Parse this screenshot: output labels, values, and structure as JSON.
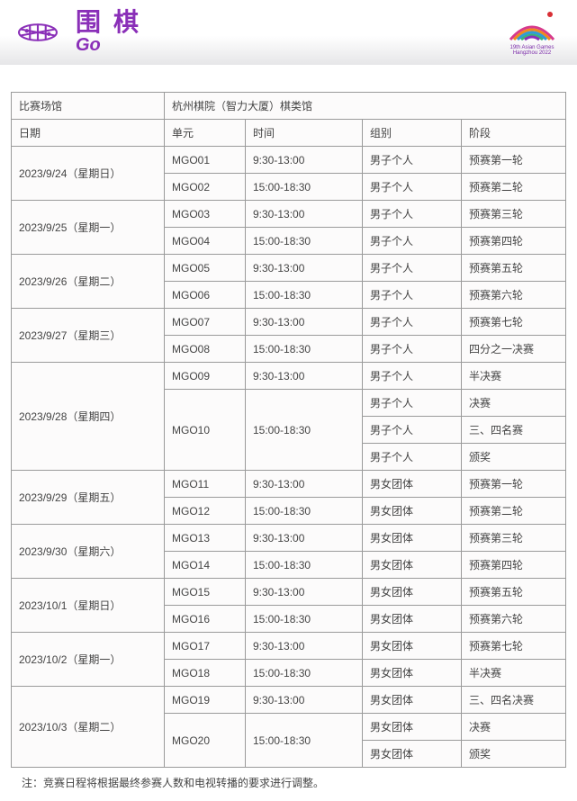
{
  "header": {
    "title_cn": "围棋",
    "title_en": "Go",
    "logo_caption": "19th Asian Games  Hangzhou 2022"
  },
  "venue_label": "比赛场馆",
  "venue_name": "杭州棋院（智力大厦）棋类馆",
  "column_headers": {
    "date": "日期",
    "unit": "单元",
    "time": "时间",
    "category": "组别",
    "phase": "阶段"
  },
  "schedule": [
    {
      "date": "2023/9/24（星期日）",
      "sessions": [
        {
          "unit": "MGO01",
          "time": "9:30-13:00",
          "rows": [
            {
              "cat": "男子个人",
              "phase": "预赛第一轮"
            }
          ]
        },
        {
          "unit": "MGO02",
          "time": "15:00-18:30",
          "rows": [
            {
              "cat": "男子个人",
              "phase": "预赛第二轮"
            }
          ]
        }
      ]
    },
    {
      "date": "2023/9/25（星期一）",
      "sessions": [
        {
          "unit": "MGO03",
          "time": "9:30-13:00",
          "rows": [
            {
              "cat": "男子个人",
              "phase": "预赛第三轮"
            }
          ]
        },
        {
          "unit": "MGO04",
          "time": "15:00-18:30",
          "rows": [
            {
              "cat": "男子个人",
              "phase": "预赛第四轮"
            }
          ]
        }
      ]
    },
    {
      "date": "2023/9/26（星期二）",
      "sessions": [
        {
          "unit": "MGO05",
          "time": "9:30-13:00",
          "rows": [
            {
              "cat": "男子个人",
              "phase": "预赛第五轮"
            }
          ]
        },
        {
          "unit": "MGO06",
          "time": "15:00-18:30",
          "rows": [
            {
              "cat": "男子个人",
              "phase": "预赛第六轮"
            }
          ]
        }
      ]
    },
    {
      "date": "2023/9/27（星期三）",
      "sessions": [
        {
          "unit": "MGO07",
          "time": "9:30-13:00",
          "rows": [
            {
              "cat": "男子个人",
              "phase": "预赛第七轮"
            }
          ]
        },
        {
          "unit": "MGO08",
          "time": "15:00-18:30",
          "rows": [
            {
              "cat": "男子个人",
              "phase": "四分之一决赛"
            }
          ]
        }
      ]
    },
    {
      "date": "2023/9/28（星期四）",
      "sessions": [
        {
          "unit": "MGO09",
          "time": "9:30-13:00",
          "rows": [
            {
              "cat": "男子个人",
              "phase": "半决赛"
            }
          ]
        },
        {
          "unit": "MGO10",
          "time": "15:00-18:30",
          "rows": [
            {
              "cat": "男子个人",
              "phase": "决赛"
            },
            {
              "cat": "男子个人",
              "phase": "三、四名赛"
            },
            {
              "cat": "男子个人",
              "phase": "颁奖"
            }
          ]
        }
      ]
    },
    {
      "date": "2023/9/29（星期五）",
      "sessions": [
        {
          "unit": "MGO11",
          "time": "9:30-13:00",
          "rows": [
            {
              "cat": "男女团体",
              "phase": "预赛第一轮"
            }
          ]
        },
        {
          "unit": "MGO12",
          "time": "15:00-18:30",
          "rows": [
            {
              "cat": "男女团体",
              "phase": "预赛第二轮"
            }
          ]
        }
      ]
    },
    {
      "date": "2023/9/30（星期六）",
      "sessions": [
        {
          "unit": "MGO13",
          "time": "9:30-13:00",
          "rows": [
            {
              "cat": "男女团体",
              "phase": "预赛第三轮"
            }
          ]
        },
        {
          "unit": "MGO14",
          "time": "15:00-18:30",
          "rows": [
            {
              "cat": "男女团体",
              "phase": "预赛第四轮"
            }
          ]
        }
      ]
    },
    {
      "date": "2023/10/1（星期日）",
      "sessions": [
        {
          "unit": "MGO15",
          "time": "9:30-13:00",
          "rows": [
            {
              "cat": "男女团体",
              "phase": "预赛第五轮"
            }
          ]
        },
        {
          "unit": "MGO16",
          "time": "15:00-18:30",
          "rows": [
            {
              "cat": "男女团体",
              "phase": "预赛第六轮"
            }
          ]
        }
      ]
    },
    {
      "date": "2023/10/2（星期一）",
      "sessions": [
        {
          "unit": "MGO17",
          "time": "9:30-13:00",
          "rows": [
            {
              "cat": "男女团体",
              "phase": "预赛第七轮"
            }
          ]
        },
        {
          "unit": "MGO18",
          "time": "15:00-18:30",
          "rows": [
            {
              "cat": "男女团体",
              "phase": "半决赛"
            }
          ]
        }
      ]
    },
    {
      "date": "2023/10/3（星期二）",
      "sessions": [
        {
          "unit": "MGO19",
          "time": "9:30-13:00",
          "rows": [
            {
              "cat": "男女团体",
              "phase": "三、四名决赛"
            }
          ]
        },
        {
          "unit": "MGO20",
          "time": "15:00-18:30",
          "rows": [
            {
              "cat": "男女团体",
              "phase": "决赛"
            },
            {
              "cat": "男女团体",
              "phase": "颁奖"
            }
          ]
        }
      ]
    }
  ],
  "footnote": "注：竞赛日程将根据最终参赛人数和电视转播的要求进行调整。",
  "colors": {
    "accent": "#8a2fb8",
    "border": "#9a9a9a",
    "text": "#444444",
    "cell_bg": "#fcfbfb"
  }
}
